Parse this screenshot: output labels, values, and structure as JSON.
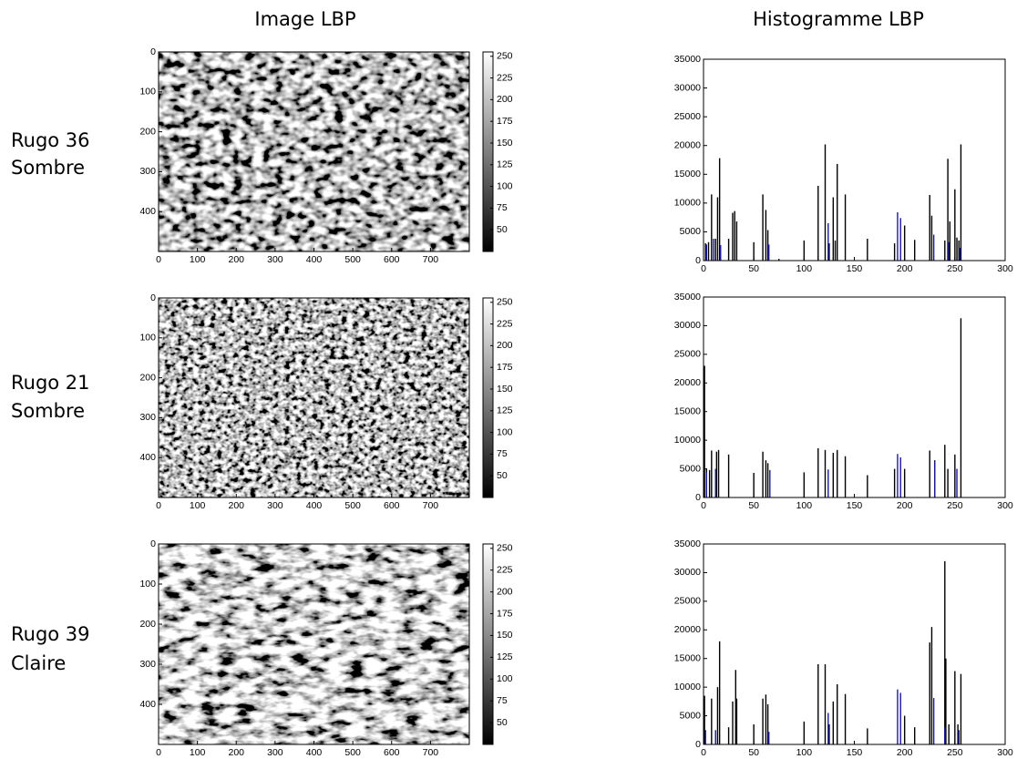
{
  "columns": [
    "Image LBP",
    "Histogramme LBP"
  ],
  "rows": [
    {
      "label_lines": [
        "Rugo 36",
        "Sombre"
      ]
    },
    {
      "label_lines": [
        "Rugo 21",
        "Sombre"
      ]
    },
    {
      "label_lines": [
        "Rugo 39",
        "Claire"
      ]
    }
  ],
  "chart_data": [
    {
      "type": "image",
      "colormap": "gray",
      "xlim": [
        0,
        800
      ],
      "ylim": [
        500,
        0
      ],
      "xticks": [
        0,
        100,
        200,
        300,
        400,
        500,
        600,
        700
      ],
      "yticks": [
        0,
        100,
        200,
        300,
        400
      ],
      "colorbar": {
        "lim": [
          25,
          255
        ],
        "ticks": [
          50,
          75,
          100,
          125,
          150,
          175,
          200,
          225,
          250
        ]
      }
    },
    {
      "type": "bar",
      "xlim": [
        0,
        300
      ],
      "ylim": [
        0,
        35000
      ],
      "xticks": [
        0,
        50,
        100,
        150,
        200,
        250,
        300
      ],
      "yticks": [
        0,
        5000,
        10000,
        15000,
        20000,
        25000,
        30000,
        35000
      ],
      "series": [
        {
          "color": "#000000",
          "x": [
            2,
            5,
            8,
            12,
            14,
            16,
            25,
            29,
            31,
            33,
            50,
            59,
            62,
            64,
            75,
            100,
            114,
            121,
            125,
            129,
            131,
            133,
            141,
            163,
            190,
            200,
            210,
            225,
            227,
            240,
            243,
            245,
            250,
            252,
            254,
            256
          ],
          "values": [
            3000,
            3200,
            11500,
            3800,
            11000,
            17800,
            3800,
            8300,
            8600,
            6800,
            3200,
            11500,
            8800,
            5300,
            300,
            3500,
            13000,
            20200,
            3000,
            11000,
            3500,
            16800,
            11500,
            3800,
            3000,
            6100,
            3600,
            11400,
            7800,
            3500,
            17700,
            6800,
            12400,
            4000,
            3500,
            20200
          ]
        },
        {
          "color": "#1a1aa0",
          "x": [
            3,
            10,
            17,
            65,
            124,
            193,
            196,
            229,
            244,
            255
          ],
          "values": [
            2800,
            3800,
            2700,
            2800,
            6500,
            8400,
            7400,
            4500,
            3200,
            2200
          ]
        }
      ]
    },
    {
      "type": "image",
      "colormap": "gray",
      "xlim": [
        0,
        800
      ],
      "ylim": [
        500,
        0
      ],
      "xticks": [
        0,
        100,
        200,
        300,
        400,
        500,
        600,
        700
      ],
      "yticks": [
        0,
        100,
        200,
        300,
        400
      ],
      "colorbar": {
        "lim": [
          25,
          255
        ],
        "ticks": [
          50,
          75,
          100,
          125,
          150,
          175,
          200,
          225,
          250
        ]
      }
    },
    {
      "type": "bar",
      "xlim": [
        0,
        300
      ],
      "ylim": [
        0,
        35000
      ],
      "xticks": [
        0,
        50,
        100,
        150,
        200,
        250,
        300
      ],
      "yticks": [
        0,
        5000,
        10000,
        15000,
        20000,
        25000,
        30000,
        35000
      ],
      "series": [
        {
          "color": "#000000",
          "x": [
            1,
            3,
            6,
            8,
            13,
            15,
            25,
            50,
            59,
            62,
            64,
            100,
            114,
            121,
            129,
            133,
            141,
            163,
            190,
            200,
            225,
            230,
            240,
            243,
            250,
            256
          ],
          "values": [
            23000,
            5000,
            4800,
            8200,
            8000,
            8300,
            7500,
            4300,
            8000,
            6500,
            6000,
            4400,
            8600,
            8300,
            7800,
            8300,
            7200,
            3900,
            5000,
            5000,
            8200,
            6500,
            9200,
            5000,
            7500,
            31300
          ]
        },
        {
          "color": "#1a1aa0",
          "x": [
            3,
            12,
            66,
            124,
            193,
            196,
            230,
            252
          ],
          "values": [
            4400,
            5000,
            4800,
            4900,
            7600,
            7000,
            6300,
            5000
          ]
        }
      ]
    },
    {
      "type": "image",
      "colormap": "gray",
      "xlim": [
        0,
        800
      ],
      "ylim": [
        500,
        0
      ],
      "xticks": [
        0,
        100,
        200,
        300,
        400,
        500,
        600,
        700
      ],
      "yticks": [
        0,
        100,
        200,
        300,
        400
      ],
      "colorbar": {
        "lim": [
          25,
          255
        ],
        "ticks": [
          50,
          75,
          100,
          125,
          150,
          175,
          200,
          225,
          250
        ]
      }
    },
    {
      "type": "bar",
      "xlim": [
        0,
        300
      ],
      "ylim": [
        0,
        35000
      ],
      "xticks": [
        0,
        50,
        100,
        150,
        200,
        250,
        300
      ],
      "yticks": [
        0,
        5000,
        10000,
        15000,
        20000,
        25000,
        30000,
        35000
      ],
      "series": [
        {
          "color": "#000000",
          "x": [
            1,
            8,
            14,
            16,
            25,
            29,
            32,
            33,
            50,
            59,
            62,
            64,
            100,
            114,
            121,
            125,
            129,
            133,
            141,
            163,
            200,
            210,
            225,
            227,
            240,
            241,
            244,
            250,
            253,
            256
          ],
          "values": [
            8500,
            8000,
            10000,
            18000,
            3000,
            7500,
            13000,
            8000,
            3500,
            8000,
            8700,
            7000,
            4000,
            14000,
            14000,
            3500,
            7500,
            10500,
            8800,
            2800,
            5000,
            3000,
            17800,
            20500,
            32000,
            15000,
            3500,
            12800,
            3500,
            12300
          ]
        },
        {
          "color": "#1a1aa0",
          "x": [
            2,
            12,
            65,
            124,
            193,
            196,
            229,
            240,
            254
          ],
          "values": [
            2500,
            2500,
            2200,
            5500,
            9600,
            9000,
            8100,
            3000,
            2500
          ]
        }
      ]
    }
  ]
}
